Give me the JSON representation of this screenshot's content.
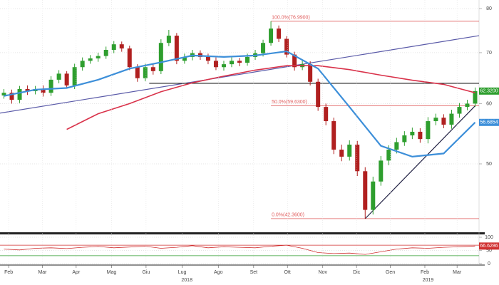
{
  "chart_data": [
    {
      "type": "candlestick",
      "log": true,
      "grid": true,
      "up_color": "#2e9e2e",
      "down_color": "#b02020",
      "xlim": [
        -0.5,
        60.5
      ],
      "ylim": [
        40.65,
        82.1
      ],
      "yticks": [
        50,
        60,
        70,
        80
      ],
      "x": [
        0,
        1,
        2,
        3,
        4,
        5,
        6,
        7,
        8,
        9,
        10,
        11,
        12,
        13,
        14,
        15,
        16,
        17,
        18,
        19,
        20,
        21,
        22,
        23,
        24,
        25,
        26,
        27,
        28,
        29,
        30,
        31,
        32,
        33,
        34,
        35,
        36,
        37,
        38,
        39,
        40,
        41,
        42,
        43,
        44,
        45,
        46,
        47,
        48,
        49,
        50,
        51,
        52,
        53,
        54,
        55,
        56,
        57,
        58,
        59,
        60
      ],
      "open": [
        61.5,
        62.0,
        60.7,
        62.7,
        62.3,
        62.7,
        62.0,
        64.5,
        65.7,
        63.4,
        67.0,
        68.3,
        68.8,
        69.3,
        70.6,
        71.8,
        70.9,
        67.0,
        64.8,
        67.0,
        66.2,
        72.1,
        73.7,
        68.3,
        69.1,
        69.9,
        69.1,
        68.3,
        67.0,
        67.6,
        68.3,
        67.9,
        69.1,
        69.9,
        72.1,
        75.3,
        73.0,
        69.6,
        67.0,
        67.6,
        64.1,
        59.4,
        56.9,
        52.2,
        51.1,
        53.0,
        48.9,
        43.5,
        47.4,
        50.5,
        52.2,
        53.4,
        54.5,
        55.1,
        53.9,
        56.9,
        57.5,
        56.3,
        58.2,
        59.4,
        60.0
      ],
      "high": [
        62.7,
        62.6,
        63.3,
        63.4,
        63.3,
        63.4,
        65.2,
        66.4,
        66.2,
        67.7,
        69.0,
        69.5,
        70.0,
        71.3,
        72.5,
        72.4,
        71.5,
        67.6,
        67.7,
        67.6,
        72.9,
        75.0,
        74.3,
        69.8,
        70.6,
        70.5,
        69.8,
        69.0,
        68.3,
        69.0,
        68.9,
        69.8,
        70.6,
        72.8,
        76.99,
        76.0,
        73.6,
        70.2,
        68.3,
        68.2,
        64.7,
        60.0,
        57.5,
        53.0,
        53.7,
        53.6,
        49.5,
        48.1,
        51.2,
        52.9,
        54.1,
        55.2,
        55.8,
        55.7,
        57.6,
        58.2,
        58.1,
        58.9,
        60.1,
        60.7,
        63.0
      ],
      "low": [
        60.9,
        60.0,
        60.1,
        61.6,
        61.7,
        61.3,
        61.4,
        63.8,
        62.8,
        62.7,
        66.3,
        67.7,
        68.1,
        68.7,
        69.9,
        70.2,
        66.4,
        64.1,
        64.2,
        65.5,
        65.6,
        71.4,
        67.6,
        67.7,
        68.4,
        68.5,
        67.6,
        66.4,
        66.3,
        67.0,
        67.2,
        67.3,
        68.5,
        69.2,
        71.5,
        72.3,
        69.0,
        66.3,
        66.4,
        63.4,
        58.7,
        56.2,
        51.5,
        50.4,
        50.5,
        48.2,
        42.36,
        42.9,
        46.8,
        49.8,
        51.6,
        52.8,
        53.9,
        53.3,
        53.2,
        56.2,
        55.7,
        55.6,
        57.5,
        58.8,
        59.4
      ],
      "close": [
        62.0,
        60.7,
        62.7,
        62.3,
        62.7,
        62.0,
        64.5,
        65.7,
        63.4,
        67.0,
        68.3,
        68.8,
        69.3,
        70.6,
        71.8,
        70.9,
        67.0,
        64.8,
        67.0,
        66.2,
        72.1,
        73.7,
        68.3,
        69.1,
        69.9,
        69.1,
        68.3,
        67.0,
        67.6,
        68.3,
        67.9,
        69.1,
        69.9,
        72.1,
        75.3,
        73.0,
        69.6,
        67.0,
        67.6,
        64.1,
        59.4,
        56.9,
        52.2,
        51.1,
        53.0,
        48.9,
        43.5,
        47.4,
        50.5,
        52.2,
        53.4,
        54.5,
        55.1,
        53.9,
        56.9,
        57.5,
        56.3,
        58.2,
        59.4,
        60.0,
        62.32
      ],
      "series": [
        {
          "color": "#d9324a",
          "width": 1.6,
          "x": [
            8,
            12,
            16,
            20,
            24,
            28,
            32,
            36,
            40,
            44,
            48,
            52,
            56,
            60
          ],
          "values": [
            55.5,
            58.2,
            60.0,
            62.2,
            63.9,
            65.2,
            66.4,
            67.3,
            67.3,
            66.5,
            65.4,
            64.4,
            63.6,
            62.0
          ]
        },
        {
          "color": "#3d8fd9",
          "width": 2.2,
          "x": [
            0,
            4,
            8,
            12,
            16,
            20,
            24,
            28,
            32,
            36,
            40,
            44,
            48,
            52,
            56,
            60
          ],
          "values": [
            61.4,
            62.6,
            62.9,
            64.5,
            66.7,
            68.0,
            69.4,
            69.1,
            69.4,
            70.3,
            66.7,
            59.4,
            52.8,
            51.1,
            51.6,
            56.6854
          ]
        }
      ],
      "trendlines": [
        {
          "color": "#5a5aa8",
          "x": [
            -0.5,
            60.5
          ],
          "y": [
            58.3,
            73.7
          ]
        },
        {
          "color": "#222222",
          "x": [
            18.5,
            60.5
          ],
          "y": [
            63.8,
            63.8
          ]
        },
        {
          "color": "#222244",
          "x": [
            46,
            60
          ],
          "y": [
            42.36,
            59.6
          ]
        }
      ],
      "fib_color": "#e06060",
      "fib_x": [
        34,
        60.5
      ],
      "fib": [
        {
          "value": 76.99,
          "label": "100.0%(76.9900)"
        },
        {
          "value": 59.63,
          "label": "50.0%(59.6300)"
        },
        {
          "value": 42.36,
          "label": "0.0%(42.3600)"
        }
      ],
      "last_labels": [
        {
          "value": 62.32,
          "label": "62.3200",
          "color": "#2e9e2e"
        },
        {
          "value": 56.6854,
          "label": "56.6854",
          "color": "#3d8fd9"
        }
      ]
    },
    {
      "type": "line",
      "grid": true,
      "color": "#d03030",
      "xlim": [
        -0.5,
        60.5
      ],
      "ylim": [
        0,
        100
      ],
      "yticks": [
        0,
        50,
        100
      ],
      "x": [
        0,
        2,
        4,
        6,
        8,
        10,
        12,
        14,
        16,
        18,
        20,
        22,
        24,
        26,
        28,
        30,
        32,
        34,
        36,
        38,
        40,
        42,
        44,
        46,
        48,
        50,
        52,
        54,
        56,
        58,
        60
      ],
      "values": [
        55,
        52,
        58,
        60,
        57,
        62,
        65,
        60,
        63,
        66,
        58,
        62,
        68,
        60,
        64,
        62,
        60,
        66,
        70,
        58,
        42,
        38,
        40,
        35,
        45,
        55,
        60,
        58,
        62,
        64,
        66.6286
      ],
      "levels": [
        {
          "value": 70,
          "color": "#d03030"
        },
        {
          "value": 30,
          "color": "#2e9e2e"
        }
      ],
      "last_labels": [
        {
          "value": 66.6286,
          "label": "66.6286",
          "color": "#d03030"
        }
      ],
      "xticks": [
        {
          "value": 0.6,
          "label": "Feb"
        },
        {
          "value": 4.9,
          "label": "Mar"
        },
        {
          "value": 9.2,
          "label": "Apr"
        },
        {
          "value": 13.7,
          "label": "Mag"
        },
        {
          "value": 18.1,
          "label": "Giu"
        },
        {
          "value": 22.7,
          "label": "Lug"
        },
        {
          "value": 27.3,
          "label": "Ago"
        },
        {
          "value": 31.8,
          "label": "Set"
        },
        {
          "value": 36.1,
          "label": "Ott"
        },
        {
          "value": 40.6,
          "label": "Nov"
        },
        {
          "value": 44.9,
          "label": "Dic"
        },
        {
          "value": 49.2,
          "label": "Gen"
        },
        {
          "value": 53.6,
          "label": "Feb"
        },
        {
          "value": 57.7,
          "label": "Mar"
        }
      ],
      "xticks2": [
        {
          "value": 23.3,
          "label": "2018"
        },
        {
          "value": 54.0,
          "label": "2019"
        }
      ]
    }
  ]
}
